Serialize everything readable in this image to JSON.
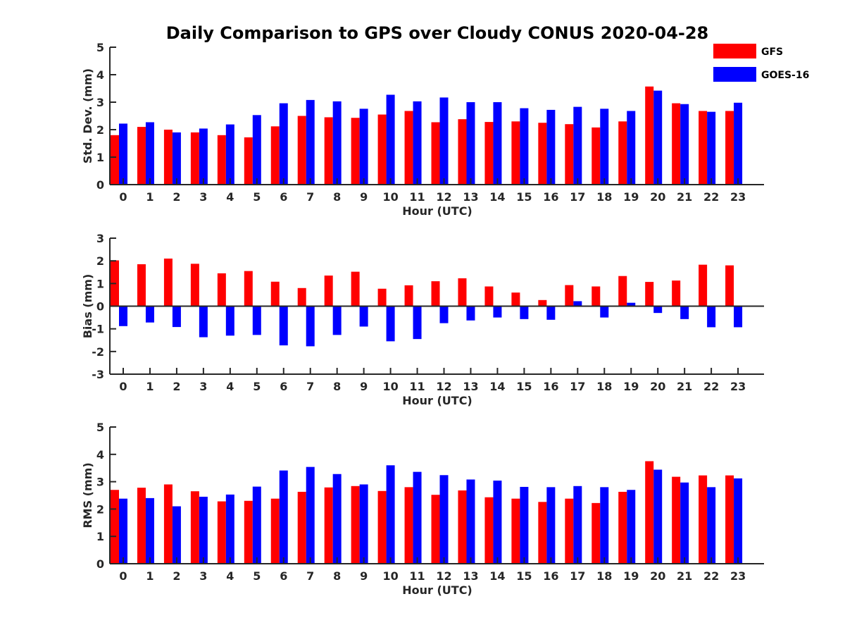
{
  "title": "Daily Comparison to GPS over Cloudy CONUS 2020-04-28",
  "legend": [
    {
      "name": "GFS",
      "color": "#ff0000"
    },
    {
      "name": "GOES-16",
      "color": "#0000ff"
    }
  ],
  "chart_data": [
    {
      "type": "bar",
      "ylabel": "Std. Dev. (mm)",
      "xlabel": "Hour (UTC)",
      "ylim": [
        0,
        5
      ],
      "yticks": [
        0,
        1,
        2,
        3,
        4,
        5
      ],
      "categories": [
        "0",
        "1",
        "2",
        "3",
        "4",
        "5",
        "6",
        "7",
        "8",
        "9",
        "10",
        "11",
        "12",
        "13",
        "14",
        "15",
        "16",
        "17",
        "18",
        "19",
        "20",
        "21",
        "22",
        "23"
      ],
      "series": [
        {
          "name": "GFS",
          "values": [
            1.8,
            2.1,
            2.0,
            1.9,
            1.8,
            1.72,
            2.12,
            2.5,
            2.45,
            2.43,
            2.55,
            2.68,
            2.27,
            2.38,
            2.28,
            2.3,
            2.25,
            2.2,
            2.08,
            2.3,
            3.57,
            2.96,
            2.68,
            2.68
          ]
        },
        {
          "name": "GOES-16",
          "values": [
            2.22,
            2.27,
            1.9,
            2.04,
            2.19,
            2.53,
            2.96,
            3.08,
            3.03,
            2.76,
            3.27,
            3.03,
            3.17,
            3.0,
            3.0,
            2.78,
            2.72,
            2.83,
            2.76,
            2.68,
            3.42,
            2.93,
            2.65,
            2.98
          ]
        }
      ]
    },
    {
      "type": "bar",
      "ylabel": "Bias (mm)",
      "xlabel": "Hour (UTC)",
      "ylim": [
        -3,
        3
      ],
      "yticks": [
        -3,
        -2,
        -1,
        0,
        1,
        2,
        3
      ],
      "categories": [
        "0",
        "1",
        "2",
        "3",
        "4",
        "5",
        "6",
        "7",
        "8",
        "9",
        "10",
        "11",
        "12",
        "13",
        "14",
        "15",
        "16",
        "17",
        "18",
        "19",
        "20",
        "21",
        "22",
        "23"
      ],
      "series": [
        {
          "name": "GFS",
          "values": [
            2.02,
            1.85,
            2.1,
            1.87,
            1.45,
            1.55,
            1.08,
            0.8,
            1.35,
            1.52,
            0.77,
            0.92,
            1.1,
            1.23,
            0.87,
            0.6,
            0.27,
            0.93,
            0.87,
            1.33,
            1.07,
            1.13,
            1.83,
            1.8
          ]
        },
        {
          "name": "GOES-16",
          "values": [
            -0.88,
            -0.72,
            -0.92,
            -1.37,
            -1.3,
            -1.27,
            -1.73,
            -1.77,
            -1.27,
            -0.9,
            -1.55,
            -1.45,
            -0.75,
            -0.63,
            -0.5,
            -0.57,
            -0.6,
            0.22,
            -0.5,
            0.15,
            -0.3,
            -0.57,
            -0.93,
            -0.93
          ]
        }
      ]
    },
    {
      "type": "bar",
      "ylabel": "RMS (mm)",
      "xlabel": "Hour (UTC)",
      "ylim": [
        0,
        5
      ],
      "yticks": [
        0,
        1,
        2,
        3,
        4,
        5
      ],
      "categories": [
        "0",
        "1",
        "2",
        "3",
        "4",
        "5",
        "6",
        "7",
        "8",
        "9",
        "10",
        "11",
        "12",
        "13",
        "14",
        "15",
        "16",
        "17",
        "18",
        "19",
        "20",
        "21",
        "22",
        "23"
      ],
      "series": [
        {
          "name": "GFS",
          "values": [
            2.7,
            2.78,
            2.9,
            2.65,
            2.28,
            2.3,
            2.38,
            2.63,
            2.79,
            2.84,
            2.66,
            2.8,
            2.52,
            2.68,
            2.43,
            2.38,
            2.26,
            2.38,
            2.22,
            2.63,
            3.75,
            3.18,
            3.23,
            3.23
          ]
        },
        {
          "name": "GOES-16",
          "values": [
            2.38,
            2.4,
            2.1,
            2.45,
            2.53,
            2.82,
            3.41,
            3.54,
            3.28,
            2.9,
            3.6,
            3.36,
            3.24,
            3.08,
            3.04,
            2.81,
            2.8,
            2.84,
            2.8,
            2.7,
            3.44,
            2.97,
            2.8,
            3.12
          ]
        }
      ]
    }
  ]
}
